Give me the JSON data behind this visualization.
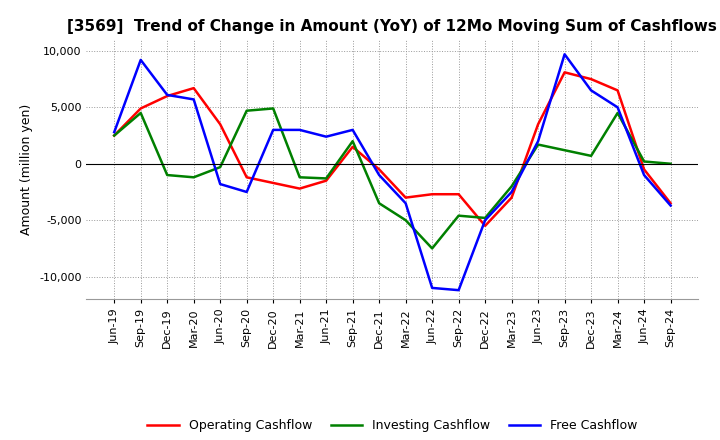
{
  "title": "[3569]  Trend of Change in Amount (YoY) of 12Mo Moving Sum of Cashflows",
  "ylabel": "Amount (million yen)",
  "x_labels": [
    "Jun-19",
    "Sep-19",
    "Dec-19",
    "Mar-20",
    "Jun-20",
    "Sep-20",
    "Dec-20",
    "Mar-21",
    "Jun-21",
    "Sep-21",
    "Dec-21",
    "Mar-22",
    "Jun-22",
    "Sep-22",
    "Dec-22",
    "Mar-23",
    "Jun-23",
    "Sep-23",
    "Dec-23",
    "Mar-24",
    "Jun-24",
    "Sep-24"
  ],
  "operating": [
    2500,
    4900,
    6000,
    6700,
    3500,
    -1200,
    -1700,
    -2200,
    -1500,
    1500,
    -500,
    -3000,
    -2700,
    -2700,
    -5500,
    -3000,
    3500,
    8100,
    7500,
    6500,
    -500,
    -3500
  ],
  "investing": [
    2500,
    4500,
    -1000,
    -1200,
    -300,
    4700,
    4900,
    -1200,
    -1300,
    2000,
    -3500,
    -5000,
    -7500,
    -4600,
    -4800,
    -2000,
    1700,
    1200,
    700,
    4500,
    200,
    0
  ],
  "free": [
    2800,
    9200,
    6100,
    5700,
    -1800,
    -2500,
    3000,
    3000,
    2400,
    3000,
    -1000,
    -3500,
    -11000,
    -11200,
    -5000,
    -2500,
    2000,
    9700,
    6500,
    5000,
    -1000,
    -3700
  ],
  "operating_color": "#ff0000",
  "investing_color": "#008000",
  "free_color": "#0000ff",
  "ylim": [
    -12000,
    11000
  ],
  "yticks": [
    -10000,
    -5000,
    0,
    5000,
    10000
  ],
  "background_color": "#ffffff",
  "grid_color": "#999999",
  "line_width": 1.8,
  "title_fontsize": 11,
  "tick_fontsize": 8,
  "ylabel_fontsize": 9,
  "legend_fontsize": 9
}
